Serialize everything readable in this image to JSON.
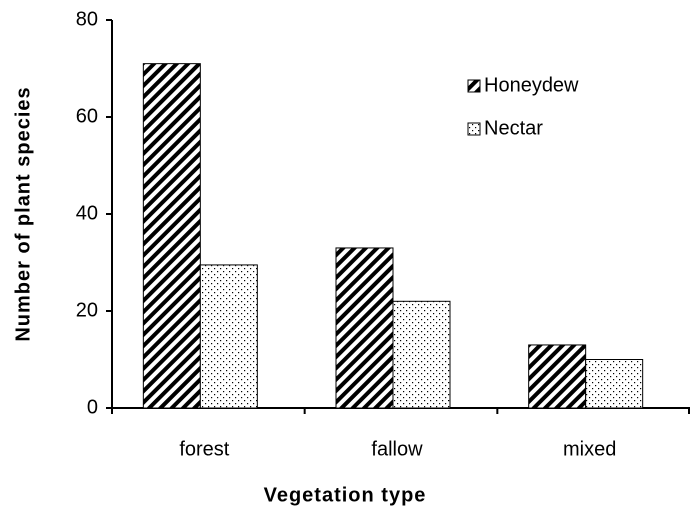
{
  "chart_data": {
    "type": "bar",
    "xlabel": "Vegetation type",
    "ylabel": "Number of plant species",
    "categories": [
      "forest",
      "fallow",
      "mixed"
    ],
    "series": [
      {
        "name": "Honeydew",
        "color": "#000000",
        "pattern": "hatch",
        "values": [
          71,
          33,
          13
        ]
      },
      {
        "name": "Nectar",
        "color": "#000000",
        "pattern": "dots",
        "values": [
          29.5,
          22,
          10
        ]
      }
    ],
    "ylim": [
      0,
      80
    ],
    "yticks": [
      0,
      20,
      40,
      60,
      80
    ],
    "legend": "upper right"
  }
}
